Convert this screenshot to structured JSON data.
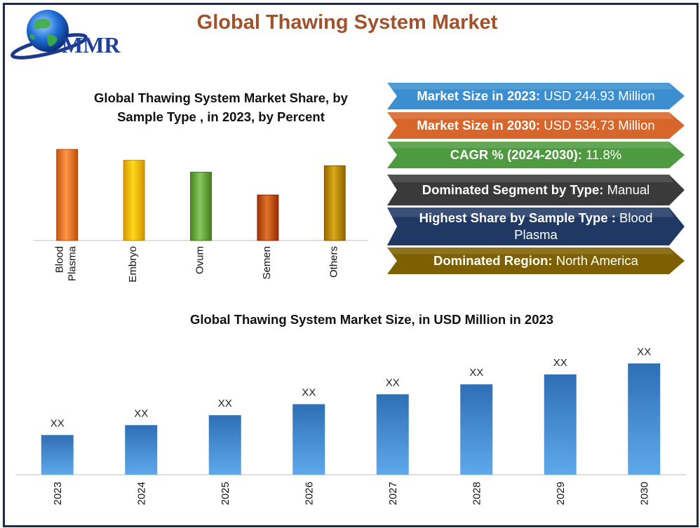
{
  "header": {
    "title": "Global Thawing System Market",
    "logo_text": "MMR"
  },
  "colors": {
    "title": "#a0522d",
    "frame": "#1f2a44",
    "card_blue": "#3b8fd0",
    "card_orange": "#d8662b",
    "card_green": "#4e9a3e",
    "card_dark": "#3a3a3a",
    "card_navy": "#203864",
    "card_olive": "#7f6000"
  },
  "cards": [
    {
      "label": "Market Size in 2023:",
      "value": "USD 244.93 Million",
      "color": "#3b8fd0"
    },
    {
      "label": "Market Size in 2030:",
      "value": "USD 534.73 Million",
      "color": "#d8662b"
    },
    {
      "label": "CAGR % (2024-2030):",
      "value": "11.8%",
      "color": "#4e9a3e"
    },
    {
      "label": "Dominated Segment by Type:",
      "value": "Manual",
      "color": "#3a3a3a"
    },
    {
      "label": "Highest Share by Sample Type :",
      "value": "Blood Plasma",
      "color": "#203864"
    },
    {
      "label": "Dominated Region:",
      "value": "North America",
      "color": "#7f6000"
    }
  ],
  "chart_data": [
    {
      "type": "bar",
      "title": "Global Thawing System Market Share, by Sample Type , in 2023, by Percent",
      "categories": [
        "Blood Plasma",
        "Embryo",
        "Ovum",
        "Semen",
        "Others"
      ],
      "values": [
        100,
        88,
        75,
        50,
        82
      ],
      "ylim": [
        0,
        100
      ],
      "colors": [
        "#ed7d31",
        "#ffc000",
        "#70ad47",
        "#c55a11",
        "#bf9000"
      ],
      "grid": false,
      "legend": "none"
    },
    {
      "type": "bar",
      "title": "Global Thawing System Market Size, in USD Million in 2023",
      "categories": [
        "2023",
        "2024",
        "2025",
        "2026",
        "2027",
        "2028",
        "2029",
        "2030"
      ],
      "values": [
        36,
        45,
        54,
        64,
        73,
        82,
        91,
        101
      ],
      "data_labels": [
        "XX",
        "XX",
        "XX",
        "XX",
        "XX",
        "XX",
        "XX",
        "XX"
      ],
      "ylim": [
        0,
        105
      ],
      "color": "#3f8fd6",
      "grid": false,
      "legend": "none"
    }
  ]
}
